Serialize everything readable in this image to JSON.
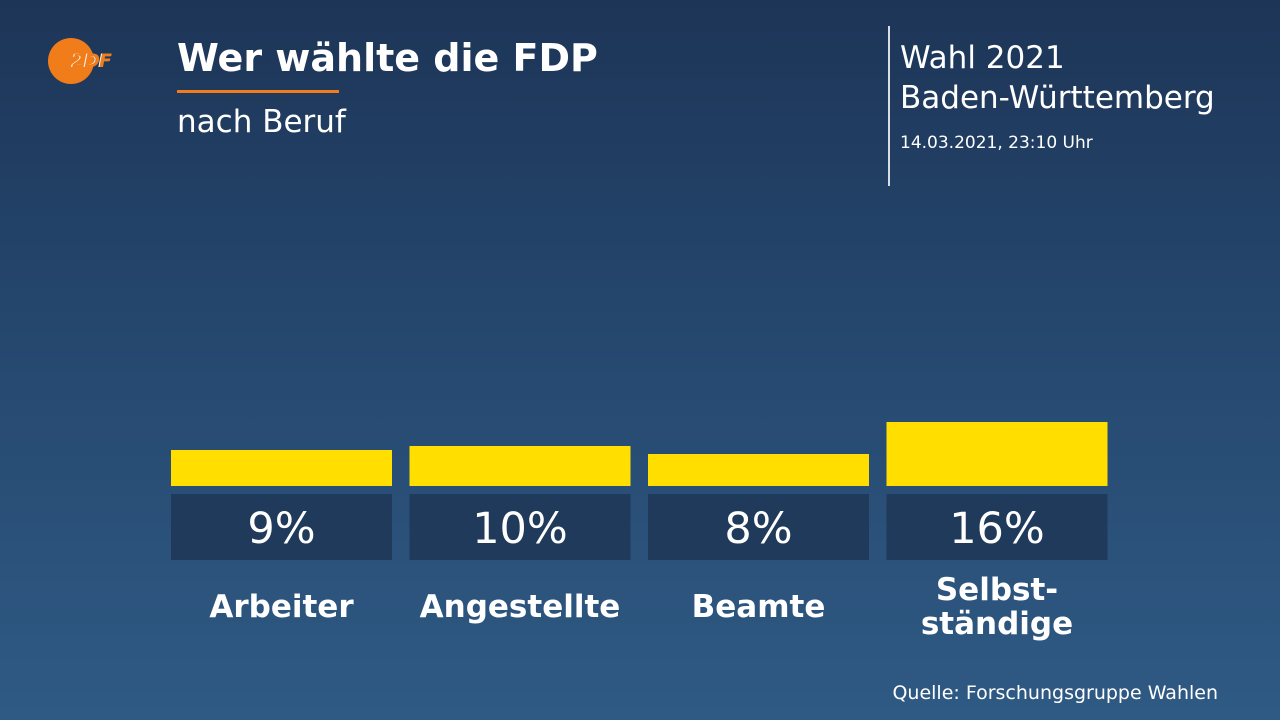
{
  "header": {
    "title": "Wer wählte die FDP",
    "subtitle": "nach Beruf",
    "logo_text": "2DF"
  },
  "info": {
    "election_line1": "Wahl 2021",
    "election_line2": "Baden-Württemberg",
    "timestamp": "14.03.2021, 23:10 Uhr"
  },
  "footer": {
    "source": "Quelle: Forschungsgruppe Wahlen"
  },
  "colors": {
    "bar": "#ffde00",
    "label_box": "#1f3a5a",
    "accent": "#f07d1a"
  },
  "chart_data": {
    "type": "bar",
    "categories": [
      [
        "Arbeiter"
      ],
      [
        "Angestellte"
      ],
      [
        "Beamte"
      ],
      [
        "Selbst-",
        "ständige"
      ]
    ],
    "values": [
      9,
      10,
      8,
      16
    ],
    "value_labels": [
      "9%",
      "10%",
      "8%",
      "16%"
    ],
    "unit": "%"
  }
}
